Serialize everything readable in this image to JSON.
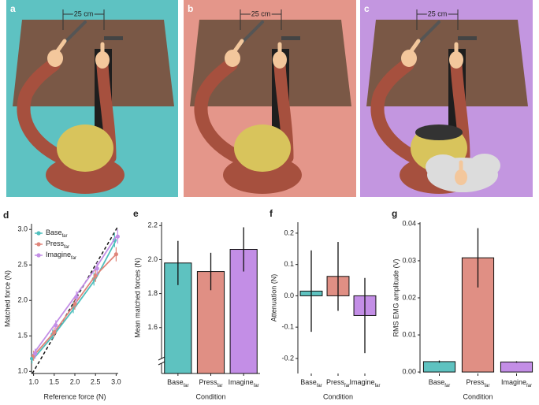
{
  "illustrations": [
    {
      "label": "a",
      "distance": "25 cm"
    },
    {
      "label": "b",
      "distance": "25 cm"
    },
    {
      "label": "c",
      "distance": "25 cm"
    }
  ],
  "chart_data": [
    {
      "type": "line",
      "label": "d",
      "xlabel": "Reference force (N)",
      "ylabel": "Matched force (N)",
      "x": [
        1,
        1.5,
        2,
        2.5,
        3
      ],
      "xlim": [
        0.95,
        3.05
      ],
      "ylim": [
        0.97,
        3.08
      ],
      "xticks": [
        {
          "value": 1,
          "label": "1.0"
        },
        1.5,
        {
          "value": 2,
          "label": "2.0"
        },
        2.5,
        {
          "value": 3,
          "label": "3.0"
        }
      ],
      "yticks": [
        {
          "value": 1,
          "label": "1.0"
        },
        1.5,
        {
          "value": 2,
          "label": "2.0"
        },
        2.5,
        {
          "value": 3,
          "label": "3.0"
        }
      ],
      "identity_line": true,
      "legend": "upper left",
      "series": [
        {
          "name": "Base",
          "name_subscript": "far",
          "color": "#4fbfbd",
          "values": [
            1.18,
            1.52,
            1.9,
            2.3,
            2.85
          ],
          "errors": [
            0.07,
            0.07,
            0.08,
            0.09,
            0.1
          ]
        },
        {
          "name": "Press",
          "name_subscript": "far",
          "color": "#e0857a",
          "values": [
            1.22,
            1.55,
            1.95,
            2.35,
            2.65
          ],
          "errors": [
            0.07,
            0.07,
            0.08,
            0.09,
            0.1
          ]
        },
        {
          "name": "Imagine",
          "name_subscript": "far",
          "color": "#c38ee6",
          "values": [
            1.25,
            1.65,
            2.05,
            2.45,
            2.9
          ],
          "errors": [
            0.07,
            0.07,
            0.08,
            0.09,
            0.1
          ]
        }
      ]
    },
    {
      "type": "bar",
      "label": "e",
      "xlabel": "Condition",
      "ylabel": "Mean matched forces (N)",
      "categories": [
        "Base",
        "Press",
        "Imagine"
      ],
      "category_subscripts": [
        "far",
        "far",
        "far"
      ],
      "colors": [
        "#5ec2c0",
        "#e08f84",
        "#c38ee6"
      ],
      "values": [
        1.98,
        1.93,
        2.06
      ],
      "errors": [
        0.13,
        0.11,
        0.13
      ],
      "ylim": [
        1.33,
        2.22
      ],
      "yticks": [
        1.6,
        1.8,
        {
          "value": 2,
          "label": "2.0"
        },
        2.2
      ],
      "axis_break": true
    },
    {
      "type": "bar",
      "label": "f",
      "xlabel": "Condition",
      "ylabel": "Attenuation (N)",
      "categories": [
        "Base",
        "Press",
        "Imagine"
      ],
      "category_subscripts": [
        "far",
        "far",
        "far"
      ],
      "colors": [
        "#5ec2c0",
        "#e08f84",
        "#c38ee6"
      ],
      "values": [
        0.015,
        0.062,
        -0.063
      ],
      "errors": [
        0.13,
        0.11,
        0.12
      ],
      "ylim": [
        -0.248,
        0.235
      ],
      "yticks": [
        -0.2,
        -0.1,
        {
          "value": 0,
          "label": "0.0"
        },
        0.1,
        0.2
      ]
    },
    {
      "type": "bar",
      "label": "g",
      "xlabel": "Condition",
      "ylabel": "RMS EMG amplitude (V)",
      "categories": [
        "Base",
        "Press",
        "Imagine"
      ],
      "category_subscripts": [
        "far",
        "far",
        "far"
      ],
      "colors": [
        "#5ec2c0",
        "#e08f84",
        "#c38ee6"
      ],
      "values": [
        0.0028,
        0.0308,
        0.0027
      ],
      "errors": [
        0.0003,
        0.008,
        0.0002
      ],
      "ylim": [
        -0.0004,
        0.0404
      ],
      "yticks": [
        {
          "value": 0,
          "label": "0.00"
        },
        0.01,
        0.02,
        0.03,
        0.04
      ]
    }
  ]
}
